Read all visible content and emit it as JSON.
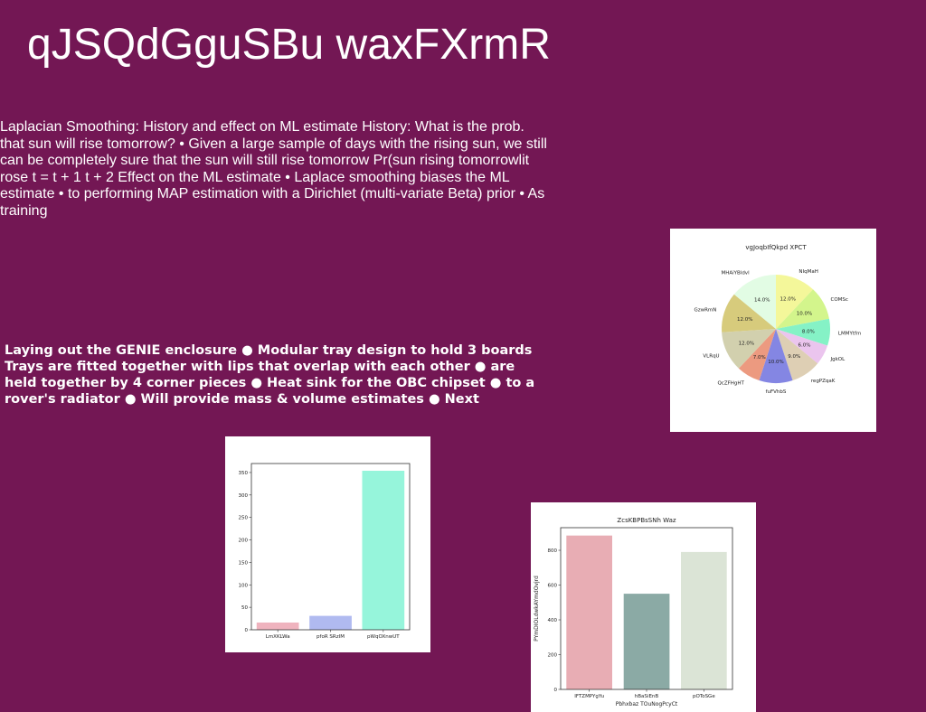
{
  "slide": {
    "title": "qJSQdGguSBu waxFXrmR",
    "paragraph": "Laplacian Smoothing: History and effect on ML estimate History: What is the prob. that sun will rise tomorrow? • Given a large sample of days with the rising sun, we still can be completely sure that the sun will still rise tomorrow Pr(sun rising tomorrowlit rose t = t + 1 t + 2 Effect on the ML estimate • Laplace smoothing biases the ML estimate • to performing MAP estimation with a Dirichlet (multi-variate Beta) prior • As training",
    "bullets": "Laying out the GENIE enclosure ● Modular tray design to hold 3 boards Trays are fitted together with lips that overlap with each other ● are held together by 4 corner pieces ● Heat sink for the OBC chipset ● to a rover's radiator ● Will provide mass & volume estimates ● Next"
  },
  "chart_data": [
    {
      "type": "pie",
      "title": "vgJoqbIfQkpd XPCT",
      "start_angle_deg": 90,
      "direction": "clockwise",
      "slices": [
        {
          "label": "NIqMaH",
          "value": 12.0,
          "pct": "12.0%",
          "color": "#f4f79a"
        },
        {
          "label": "COMSc",
          "value": 10.0,
          "pct": "10.0%",
          "color": "#d3f58c"
        },
        {
          "label": "LMMYtfm",
          "value": 8.0,
          "pct": "8.0%",
          "color": "#85f2c6"
        },
        {
          "label": "JgkOL",
          "value": 6.0,
          "pct": "6.0%",
          "color": "#ebc5ee"
        },
        {
          "label": "regPZqaK",
          "value": 9.0,
          "pct": "9.0%",
          "color": "#decfb4"
        },
        {
          "label": "fuFVhbS",
          "value": 10.0,
          "pct": "10.0%",
          "color": "#8486e3"
        },
        {
          "label": "QcZFHgHT",
          "value": 7.0,
          "pct": "7.0%",
          "color": "#ec9a80"
        },
        {
          "label": "VLRqU",
          "value": 12.0,
          "pct": "12.0%",
          "color": "#d2d0ae"
        },
        {
          "label": "GzwRmN",
          "value": 12.0,
          "pct": "12.0%",
          "color": "#d7cb7c"
        },
        {
          "label": "MHAiYBldvl",
          "value": 14.0,
          "pct": "14.0%",
          "color": "#e2fce4"
        }
      ]
    },
    {
      "type": "bar",
      "title": "",
      "categories": [
        "LmXKLWa",
        "pfoR SRzIM",
        "pWqOXnwUT"
      ],
      "values": [
        16,
        31,
        354
      ],
      "colors": [
        "#efb3be",
        "#b0baf0",
        "#96f5db"
      ],
      "ylim": [
        0,
        370
      ],
      "yticks": [
        0,
        50,
        100,
        150,
        200,
        250,
        300,
        350
      ]
    },
    {
      "type": "bar",
      "title": "ZcsKBPBsSNh Waz",
      "xlabel": "Pbhxbaz TOuNogPcyCt",
      "ylabel": "PYmDIOLdwkAYmdOvjrd",
      "categories": [
        "IFTZMPYgYu",
        "hBaSiEnB",
        "pOToSGe"
      ],
      "values": [
        885,
        550,
        790
      ],
      "colors": [
        "#e8adb4",
        "#8baaa5",
        "#dbe4d6"
      ],
      "ylim": [
        0,
        930
      ],
      "yticks": [
        0,
        200,
        400,
        600,
        800
      ]
    }
  ]
}
